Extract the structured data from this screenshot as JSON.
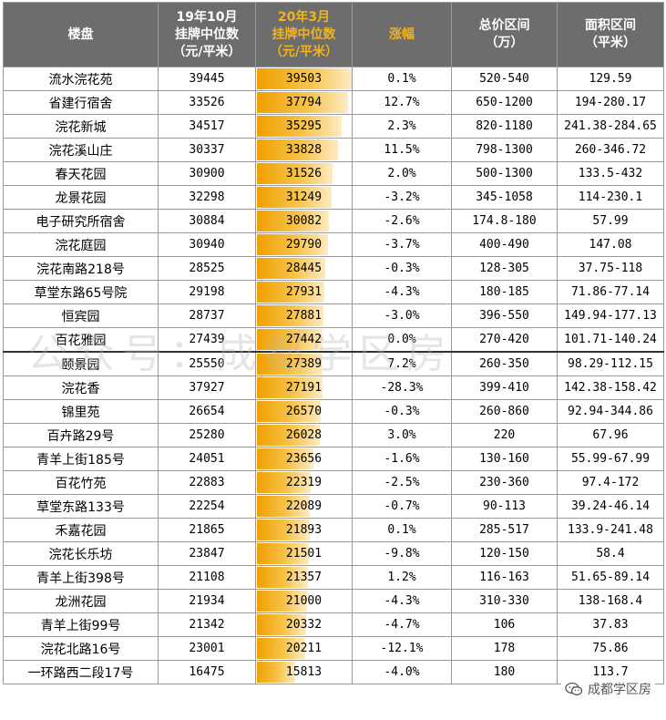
{
  "headers": {
    "col1": "楼盘",
    "col2": [
      "19年10月",
      "挂牌中位数",
      "（元/平米）"
    ],
    "col3": [
      "20年3月",
      "挂牌中位数",
      "（元/平米）"
    ],
    "col4": "涨幅",
    "col5": [
      "总价区间",
      "（万）"
    ],
    "col6": [
      "面积区间",
      "（平米）"
    ]
  },
  "rows": [
    {
      "name": "流水浣花苑",
      "oct": "39445",
      "mar": "39503",
      "mar_value": 39503,
      "change": "0.1%",
      "price": "520-540",
      "area": "129.59"
    },
    {
      "name": "省建行宿舍",
      "oct": "33526",
      "mar": "37794",
      "mar_value": 37794,
      "change": "12.7%",
      "price": "650-1200",
      "area": "194-280.17"
    },
    {
      "name": "浣花新城",
      "oct": "34517",
      "mar": "35295",
      "mar_value": 35295,
      "change": "2.3%",
      "price": "820-1180",
      "area": "241.38-284.65"
    },
    {
      "name": "浣花溪山庄",
      "oct": "30337",
      "mar": "33828",
      "mar_value": 33828,
      "change": "11.5%",
      "price": "798-1300",
      "area": "260-346.72"
    },
    {
      "name": "春天花园",
      "oct": "30900",
      "mar": "31526",
      "mar_value": 31526,
      "change": "2.0%",
      "price": "500-1300",
      "area": "133.5-432"
    },
    {
      "name": "龙景花园",
      "oct": "32298",
      "mar": "31249",
      "mar_value": 31249,
      "change": "-3.2%",
      "price": "345-1058",
      "area": "114-230.1"
    },
    {
      "name": "电子研究所宿舍",
      "oct": "30884",
      "mar": "30082",
      "mar_value": 30082,
      "change": "-2.6%",
      "price": "174.8-180",
      "area": "57.99"
    },
    {
      "name": "浣花庭园",
      "oct": "30940",
      "mar": "29790",
      "mar_value": 29790,
      "change": "-3.7%",
      "price": "400-490",
      "area": "147.08"
    },
    {
      "name": "浣花南路218号",
      "oct": "28525",
      "mar": "28445",
      "mar_value": 28445,
      "change": "-0.3%",
      "price": "128-305",
      "area": "37.75-118"
    },
    {
      "name": "草堂东路65号院",
      "oct": "29198",
      "mar": "27931",
      "mar_value": 27931,
      "change": "-4.3%",
      "price": "180-185",
      "area": "71.86-77.14"
    },
    {
      "name": "恒宾园",
      "oct": "28737",
      "mar": "27881",
      "mar_value": 27881,
      "change": "-3.0%",
      "price": "396-550",
      "area": "149.94-177.13"
    },
    {
      "name": "百花雅园",
      "oct": "27439",
      "mar": "27442",
      "mar_value": 27442,
      "change": "0.0%",
      "price": "270-420",
      "area": "101.71-140.24"
    },
    {
      "name": "颐景园",
      "oct": "25550",
      "mar": "27389",
      "mar_value": 27389,
      "change": "7.2%",
      "price": "260-350",
      "area": "98.29-112.15"
    },
    {
      "name": "浣花香",
      "oct": "37927",
      "mar": "27191",
      "mar_value": 27191,
      "change": "-28.3%",
      "price": "399-410",
      "area": "142.38-158.42"
    },
    {
      "name": "锦里苑",
      "oct": "26654",
      "mar": "26570",
      "mar_value": 26570,
      "change": "-0.3%",
      "price": "260-860",
      "area": "92.94-344.86"
    },
    {
      "name": "百卉路29号",
      "oct": "25280",
      "mar": "26028",
      "mar_value": 26028,
      "change": "3.0%",
      "price": "220",
      "area": "67.96"
    },
    {
      "name": "青羊上街185号",
      "oct": "24051",
      "mar": "23656",
      "mar_value": 23656,
      "change": "-1.6%",
      "price": "130-160",
      "area": "55.99-67.99"
    },
    {
      "name": "百花竹苑",
      "oct": "22883",
      "mar": "22319",
      "mar_value": 22319,
      "change": "-2.5%",
      "price": "230-360",
      "area": "97.4-172"
    },
    {
      "name": "草堂东路133号",
      "oct": "22254",
      "mar": "22089",
      "mar_value": 22089,
      "change": "-0.7%",
      "price": "90-113",
      "area": "39.24-46.14"
    },
    {
      "name": "禾嘉花园",
      "oct": "21865",
      "mar": "21893",
      "mar_value": 21893,
      "change": "0.1%",
      "price": "285-517",
      "area": "133.9-241.48"
    },
    {
      "name": "浣花长乐坊",
      "oct": "23847",
      "mar": "21501",
      "mar_value": 21501,
      "change": "-9.8%",
      "price": "120-150",
      "area": "58.4"
    },
    {
      "name": "青羊上街398号",
      "oct": "21108",
      "mar": "21357",
      "mar_value": 21357,
      "change": "1.2%",
      "price": "116-163",
      "area": "51.65-89.14"
    },
    {
      "name": "龙洲花园",
      "oct": "21934",
      "mar": "21000",
      "mar_value": 21000,
      "change": "-4.3%",
      "price": "310-330",
      "area": "138-168.4"
    },
    {
      "name": "青羊上街99号",
      "oct": "21342",
      "mar": "20332",
      "mar_value": 20332,
      "change": "-4.7%",
      "price": "106",
      "area": "37.83"
    },
    {
      "name": "浣花北路16号",
      "oct": "23001",
      "mar": "20211",
      "mar_value": 20211,
      "change": "-12.1%",
      "price": "178",
      "area": "75.86"
    },
    {
      "name": "一环路西二段17号",
      "oct": "16475",
      "mar": "15813",
      "mar_value": 15813,
      "change": "-4.0%",
      "price": "180",
      "area": "113.7"
    }
  ],
  "bar_scale_max": 39503,
  "bar_color": "#f0a000",
  "header_bg": "#6d6d6d",
  "header_accent": "#f2b31c",
  "watermark": "公众号：成都学区房",
  "brand_text": "成都学区房",
  "brand_icon": "wechat-icon"
}
